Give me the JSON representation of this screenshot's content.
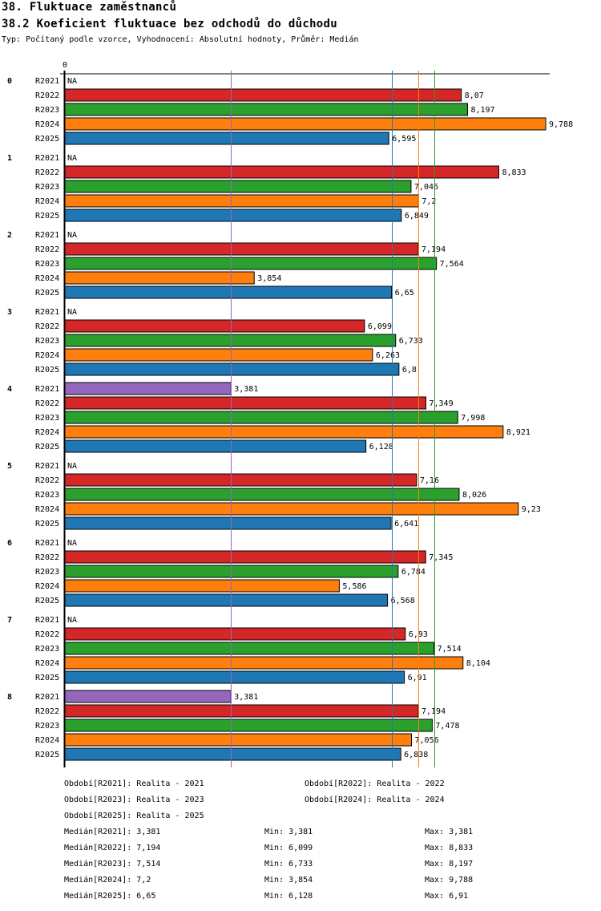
{
  "header": {
    "title": "38. Fluktuace zaměstnanců",
    "subtitle": "38.2 Koeficient fluktuace bez odchodů do důchodu",
    "info": "Typ: Počítaný podle vzorce, Vyhodnocení: Absolutní hodnoty, Průměr: Medián"
  },
  "chart_data": {
    "type": "bar",
    "orientation": "horizontal",
    "x_tick_label": "0",
    "xlim": [
      0,
      9.788
    ],
    "groups": [
      "0",
      "1",
      "2",
      "3",
      "4",
      "5",
      "6",
      "7",
      "8"
    ],
    "series": [
      {
        "name": "R2021",
        "color": "#9467bd",
        "values": [
          null,
          null,
          null,
          null,
          3.381,
          null,
          null,
          null,
          3.381
        ],
        "labels": [
          "NA",
          "NA",
          "NA",
          "NA",
          "3,381",
          "NA",
          "NA",
          "NA",
          "3,381"
        ]
      },
      {
        "name": "R2022",
        "color": "#d62728",
        "values": [
          8.07,
          8.833,
          7.194,
          6.099,
          7.349,
          7.16,
          7.345,
          6.93,
          7.194
        ],
        "labels": [
          "8,07",
          "8,833",
          "7,194",
          "6,099",
          "7,349",
          "7,16",
          "7,345",
          "6,93",
          "7,194"
        ]
      },
      {
        "name": "R2023",
        "color": "#2ca02c",
        "values": [
          8.197,
          7.046,
          7.564,
          6.733,
          7.998,
          8.026,
          6.784,
          7.514,
          7.478
        ],
        "labels": [
          "8,197",
          "7,046",
          "7,564",
          "6,733",
          "7,998",
          "8,026",
          "6,784",
          "7,514",
          "7,478"
        ]
      },
      {
        "name": "R2024",
        "color": "#ff7f0e",
        "values": [
          9.788,
          7.2,
          3.854,
          6.263,
          8.921,
          9.23,
          5.586,
          8.104,
          7.056
        ],
        "labels": [
          "9,788",
          "7,2",
          "3,854",
          "6,263",
          "8,921",
          "9,23",
          "5,586",
          "8,104",
          "7,056"
        ]
      },
      {
        "name": "R2025",
        "color": "#1f77b4",
        "values": [
          6.595,
          6.849,
          6.65,
          6.8,
          6.128,
          6.641,
          6.568,
          6.91,
          6.838
        ],
        "labels": [
          "6,595",
          "6,849",
          "6,65",
          "6,8",
          "6,128",
          "6,641",
          "6,568",
          "6,91",
          "6,838"
        ]
      }
    ],
    "medians": {
      "R2021": 3.381,
      "R2022": 7.194,
      "R2023": 7.514,
      "R2024": 7.2,
      "R2025": 6.65
    }
  },
  "legend": {
    "periods": [
      "Období[R2021]: Realita - 2021",
      "Období[R2022]: Realita - 2022",
      "Období[R2023]: Realita - 2023",
      "Období[R2024]: Realita - 2024",
      "Období[R2025]: Realita - 2025"
    ],
    "stats": [
      {
        "median": "Medián[R2021]: 3,381",
        "min": "Min: 3,381",
        "max": "Max: 3,381"
      },
      {
        "median": "Medián[R2022]: 7,194",
        "min": "Min: 6,099",
        "max": "Max: 8,833"
      },
      {
        "median": "Medián[R2023]: 7,514",
        "min": "Min: 6,733",
        "max": "Max: 8,197"
      },
      {
        "median": "Medián[R2024]: 7,2",
        "min": "Min: 3,854",
        "max": "Max: 9,788"
      },
      {
        "median": "Medián[R2025]: 6,65",
        "min": "Min: 6,128",
        "max": "Max: 6,91"
      }
    ]
  }
}
